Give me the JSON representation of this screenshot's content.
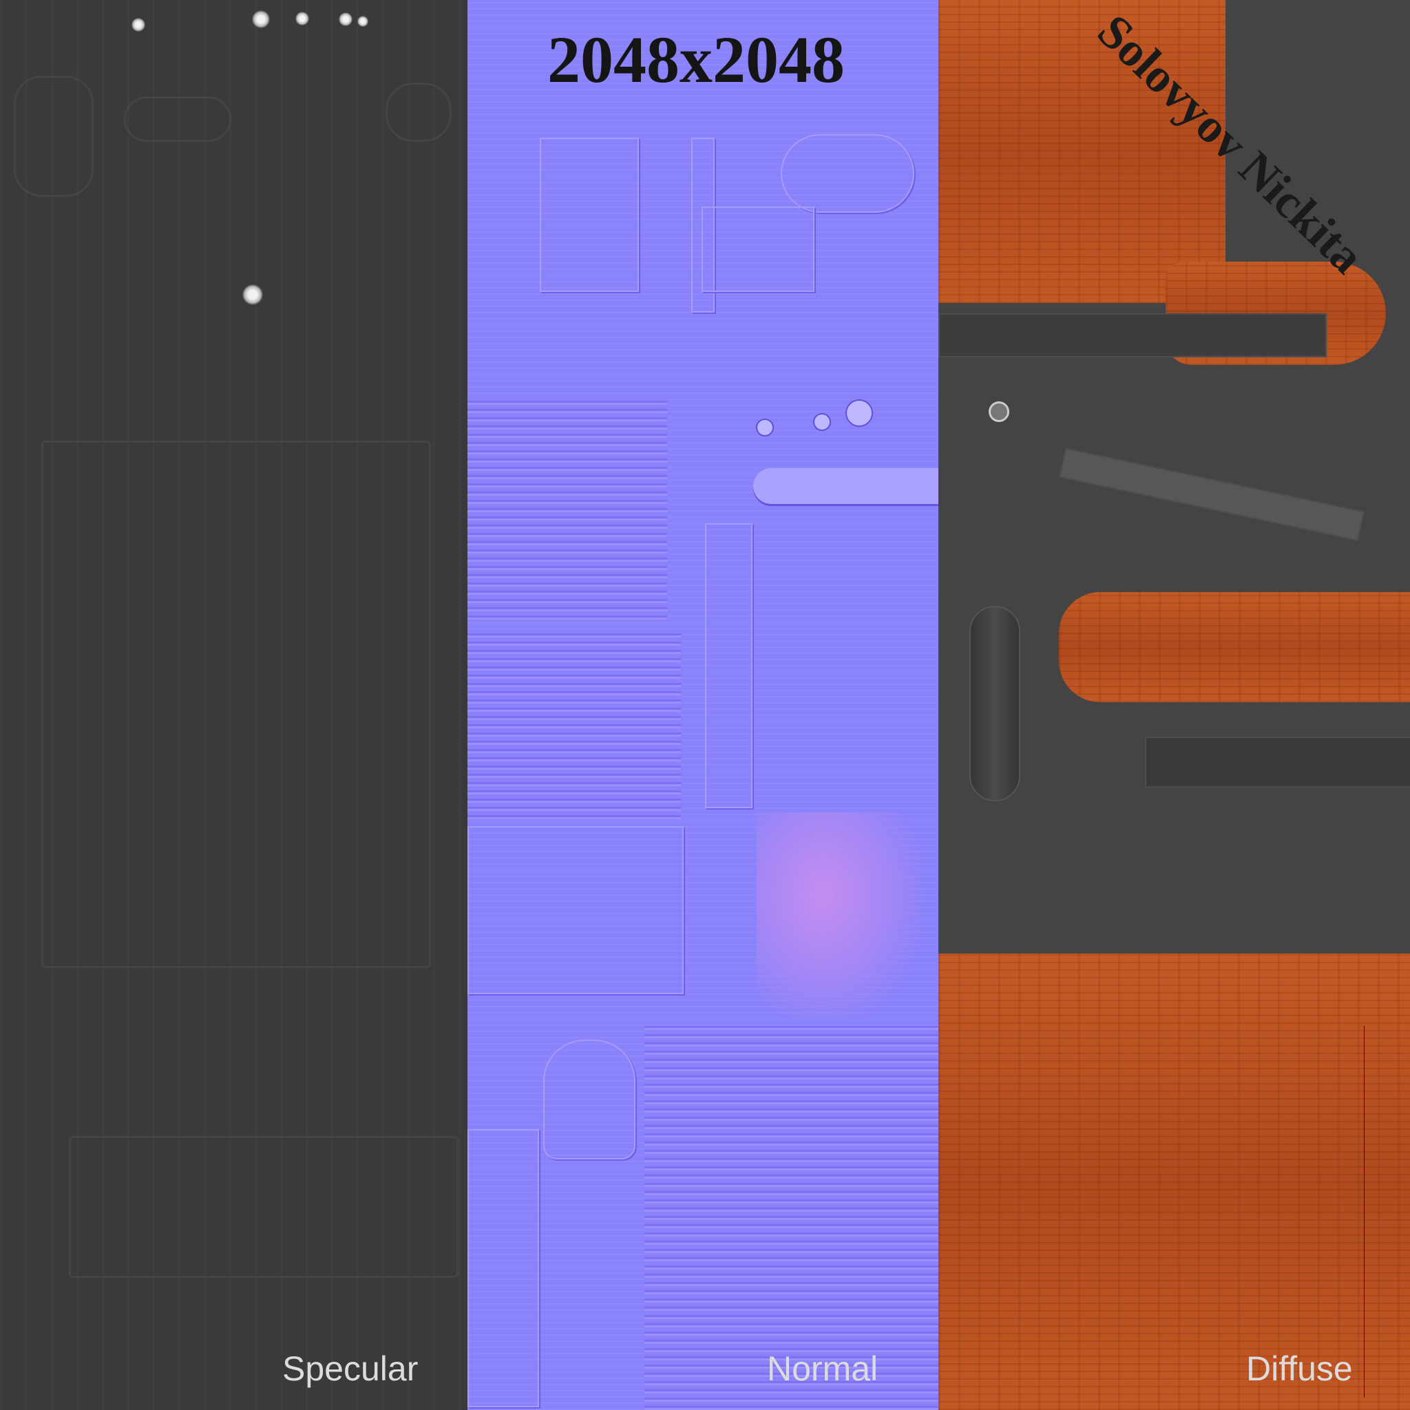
{
  "title": "2048x2048",
  "author": "Solovyov Nickita",
  "panels": {
    "specular": {
      "label": "Specular"
    },
    "normal": {
      "label": "Normal"
    },
    "diffuse": {
      "label": "Diffuse"
    }
  },
  "colors": {
    "specular_base": "#3a3a3a",
    "normal_base": "#8a82fa",
    "diffuse_wood": "#b8511f",
    "diffuse_metal": "#444444",
    "label_text": "#dcdcdc",
    "overlay_text": "#151515"
  }
}
